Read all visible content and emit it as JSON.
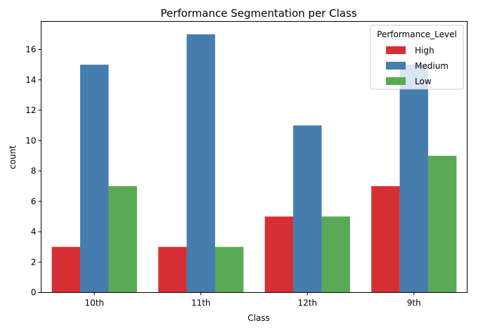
{
  "chart_data": {
    "type": "bar",
    "title": "Performance Segmentation per Class",
    "xlabel": "Class",
    "ylabel": "count",
    "categories": [
      "10th",
      "11th",
      "12th",
      "9th"
    ],
    "series": [
      {
        "name": "High",
        "values": [
          3,
          3,
          5,
          7
        ],
        "color": "#d62f33"
      },
      {
        "name": "Medium",
        "values": [
          15,
          17,
          11,
          15
        ],
        "color": "#447dae"
      },
      {
        "name": "Low",
        "values": [
          7,
          3,
          5,
          9
        ],
        "color": "#5aa957"
      }
    ],
    "ylim": [
      0,
      17.85
    ],
    "yticks": [
      0,
      2,
      4,
      6,
      8,
      10,
      12,
      14,
      16
    ],
    "grid": false,
    "legend": {
      "title": "Performance_Level",
      "placement": "top-right"
    }
  }
}
